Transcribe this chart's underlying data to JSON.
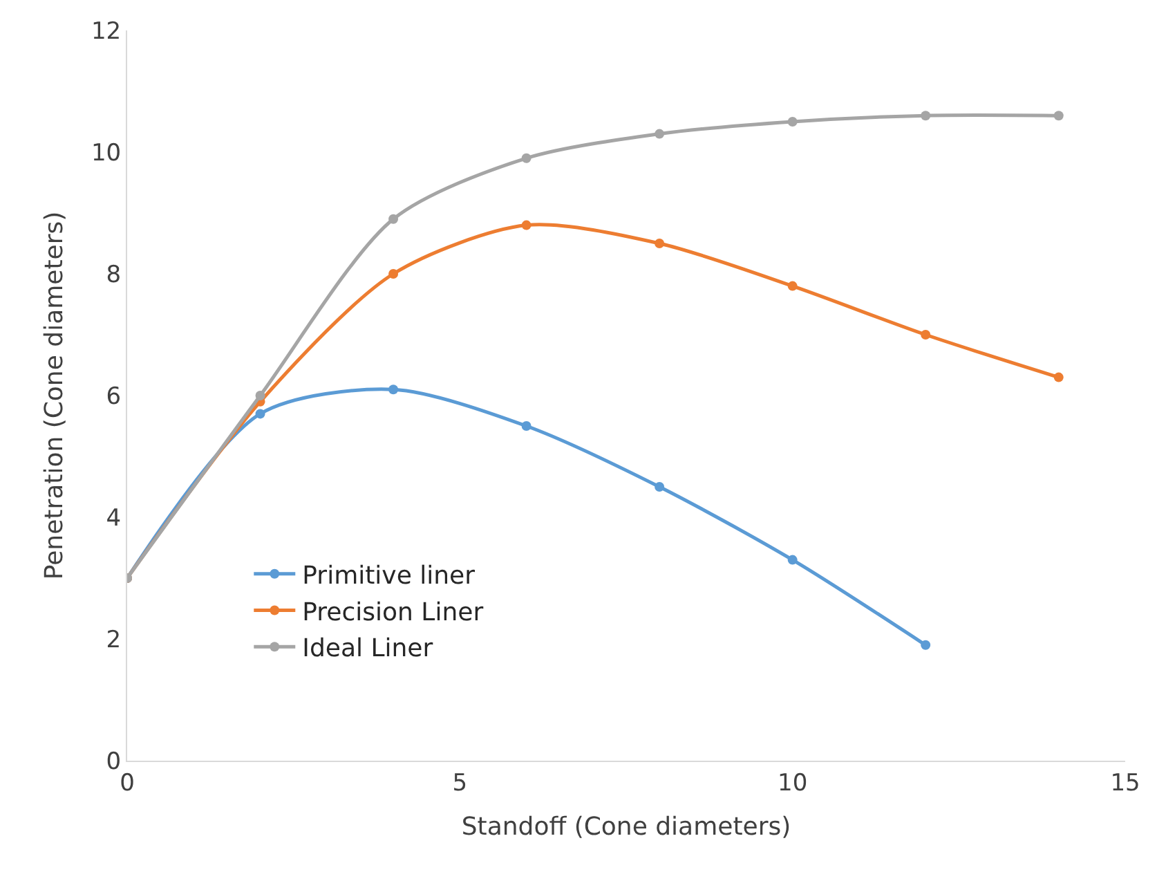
{
  "chart_data": {
    "type": "line",
    "xlabel": "Standoff (Cone diameters)",
    "ylabel": "Penetration (Cone diameters)",
    "xlim": [
      0,
      15
    ],
    "xticks": [
      0,
      5,
      10,
      15
    ],
    "ylim": [
      0,
      12
    ],
    "yticks": [
      0,
      2,
      4,
      6,
      8,
      10,
      12
    ],
    "grid": false,
    "legend": "bottom left",
    "marker": "circle",
    "line_style": "solid",
    "series": [
      {
        "name": "Primitive liner",
        "color": "#5b9bd5",
        "x": [
          0,
          2,
          4,
          6,
          8,
          10,
          12
        ],
        "values": [
          3,
          5.7,
          6.1,
          5.5,
          4.5,
          3.3,
          1.9
        ]
      },
      {
        "name": "Precision Liner",
        "color": "#ed7d31",
        "x": [
          0,
          2,
          4,
          6,
          8,
          10,
          12,
          14
        ],
        "values": [
          3,
          5.9,
          8.0,
          8.8,
          8.5,
          7.8,
          7.0,
          6.3
        ]
      },
      {
        "name": "Ideal Liner",
        "color": "#a5a5a5",
        "x": [
          0,
          2,
          4,
          6,
          8,
          10,
          12,
          14
        ],
        "values": [
          3,
          6.0,
          8.9,
          9.9,
          10.3,
          10.5,
          10.6,
          10.6
        ]
      }
    ]
  }
}
